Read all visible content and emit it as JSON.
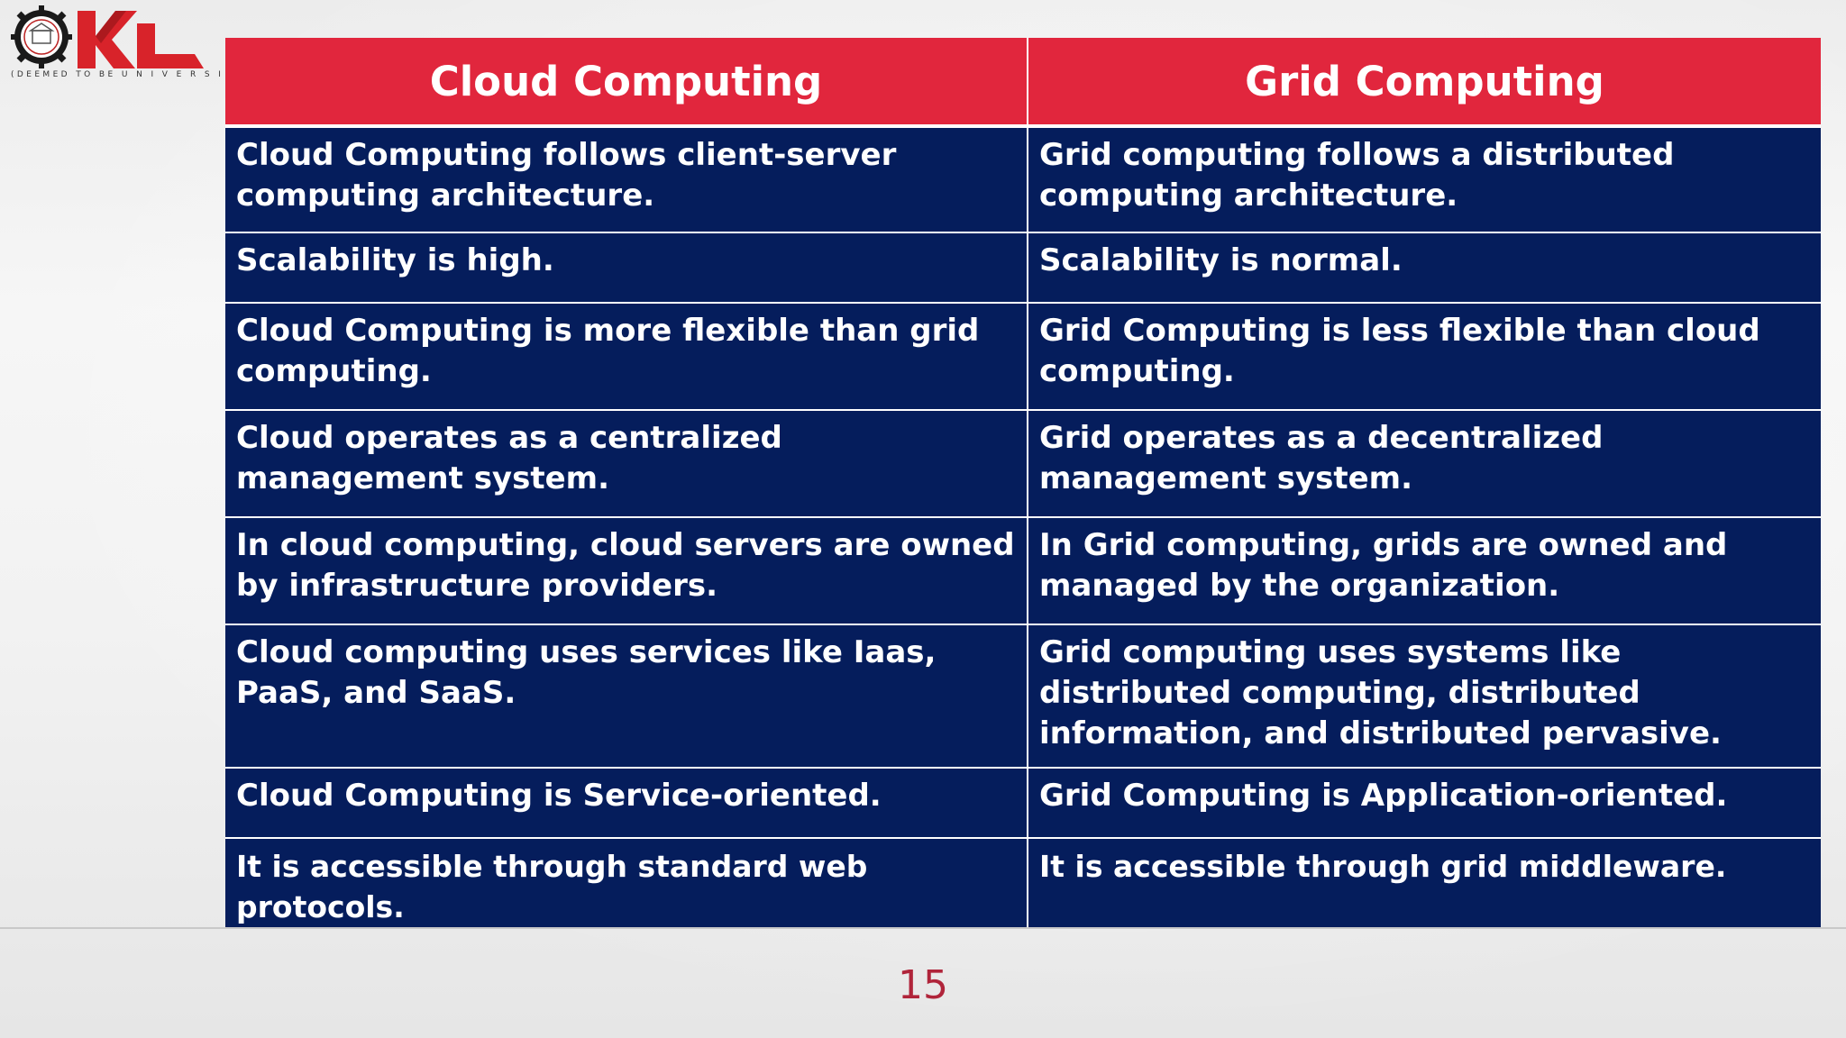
{
  "logo": {
    "text": "KL",
    "tagline": "(DEEMED TO BE U N I V E R S I T Y)"
  },
  "table": {
    "headers": [
      "Cloud Computing",
      "Grid Computing"
    ],
    "rows": [
      [
        "Cloud Computing follows client-server computing architecture.",
        "Grid computing follows a distributed computing architecture."
      ],
      [
        "Scalability is high.",
        "Scalability is normal."
      ],
      [
        "Cloud Computing is more flexible than grid computing.",
        "Grid Computing is less flexible than cloud computing."
      ],
      [
        "Cloud operates as a centralized management system.",
        "Grid operates as a decentralized management system."
      ],
      [
        "In cloud computing, cloud servers are owned by infrastructure providers.",
        "In Grid computing, grids are owned and managed by the organization."
      ],
      [
        "Cloud computing uses services like Iaas, PaaS, and SaaS.",
        "Grid computing uses systems like distributed computing, distributed information, and distributed pervasive."
      ],
      [
        "Cloud Computing is Service-oriented.",
        "Grid Computing is Application-oriented."
      ],
      [
        "It is accessible through standard web protocols.",
        "It is accessible through grid middleware."
      ]
    ]
  },
  "footer": {
    "page_number": "15"
  },
  "colors": {
    "header_bg": "#e1263d",
    "cell_bg": "#051d5c",
    "page_number": "#b0243a",
    "logo_red": "#d8232a"
  }
}
